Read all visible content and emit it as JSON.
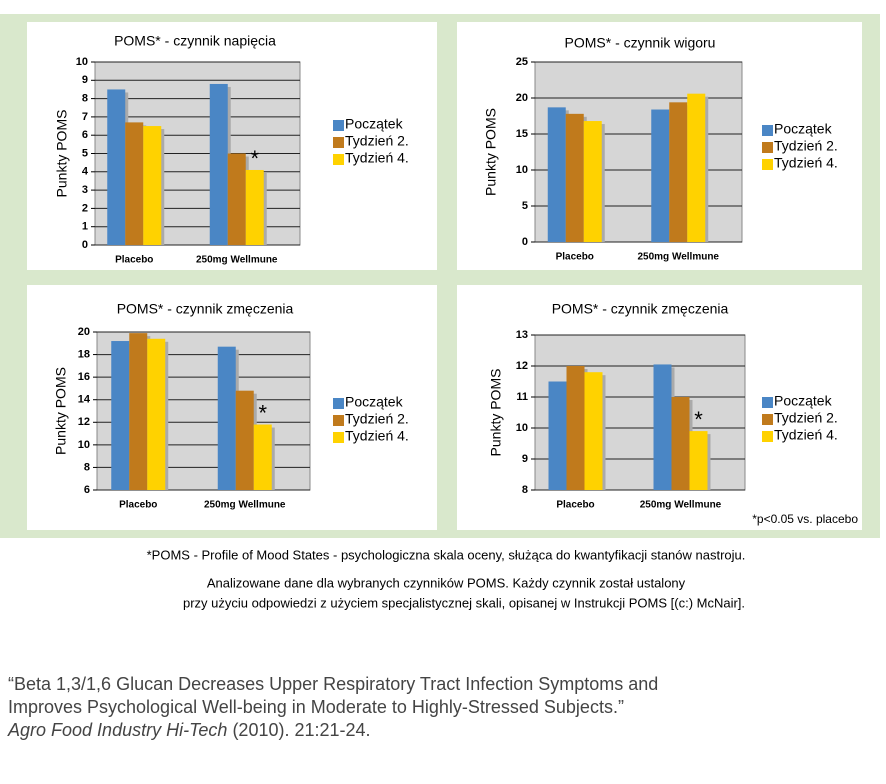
{
  "chart_data": [
    {
      "type": "bar",
      "title": "POMS* - czynnik napięcia",
      "y_label": "Punkty POMS",
      "categories": [
        "Placebo",
        "250mg Wellmune"
      ],
      "series": [
        {
          "name": "Początek",
          "color": "#4a86c5",
          "values": [
            8.5,
            8.8
          ]
        },
        {
          "name": "Tydzień 2.",
          "color": "#c07a1c",
          "values": [
            6.7,
            5.0
          ]
        },
        {
          "name": "Tydzień 4.",
          "color": "#ffd200",
          "values": [
            6.5,
            4.1
          ]
        }
      ],
      "ylim": [
        0,
        10
      ],
      "yticks": [
        0,
        1,
        2,
        3,
        4,
        5,
        6,
        7,
        8,
        9,
        10
      ],
      "grid": true,
      "legend": "right",
      "significance_marker": "*"
    },
    {
      "type": "bar",
      "title": "POMS* - czynnik wigoru",
      "y_label": "Punkty POMS",
      "categories": [
        "Placebo",
        "250mg Wellmune"
      ],
      "series": [
        {
          "name": "Początek",
          "color": "#4a86c5",
          "values": [
            18.7,
            18.4
          ]
        },
        {
          "name": "Tydzień 2.",
          "color": "#c07a1c",
          "values": [
            17.8,
            19.4
          ]
        },
        {
          "name": "Tydzień 4.",
          "color": "#ffd200",
          "values": [
            16.8,
            20.6
          ]
        }
      ],
      "ylim": [
        0,
        25
      ],
      "yticks": [
        0,
        5,
        10,
        15,
        20,
        25
      ],
      "grid": true,
      "legend": "right"
    },
    {
      "type": "bar",
      "title": "POMS* - czynnik zmęczenia",
      "y_label": "Punkty POMS",
      "categories": [
        "Placebo",
        "250mg Wellmune"
      ],
      "series": [
        {
          "name": "Początek",
          "color": "#4a86c5",
          "values": [
            19.2,
            18.7
          ]
        },
        {
          "name": "Tydzień 2.",
          "color": "#c07a1c",
          "values": [
            19.9,
            14.8
          ]
        },
        {
          "name": "Tydzień 4.",
          "color": "#ffd200",
          "values": [
            19.4,
            11.8
          ]
        }
      ],
      "ylim": [
        6,
        20
      ],
      "yticks": [
        6,
        8,
        10,
        12,
        14,
        16,
        18,
        20
      ],
      "grid": true,
      "legend": "right",
      "significance_marker": "*"
    },
    {
      "type": "bar",
      "title": "POMS* - czynnik zmęczenia",
      "y_label": "Punkty POMS",
      "categories": [
        "Placebo",
        "250mg Wellmune"
      ],
      "series": [
        {
          "name": "Początek",
          "color": "#4a86c5",
          "values": [
            11.5,
            12.05
          ]
        },
        {
          "name": "Tydzień 2.",
          "color": "#c07a1c",
          "values": [
            12.0,
            11.0
          ]
        },
        {
          "name": "Tydzień 4.",
          "color": "#ffd200",
          "values": [
            11.8,
            9.9
          ]
        }
      ],
      "ylim": [
        8,
        13
      ],
      "yticks": [
        8,
        9,
        10,
        11,
        12,
        13
      ],
      "grid": true,
      "legend": "right",
      "significance_marker": "*"
    }
  ],
  "notes": {
    "significance": "*p<0.05 vs. placebo",
    "definition": "*POMS - Profile of Mood States - psychologiczna skala oceny, służąca do kwantyfikacji stanów nastroju.",
    "description": [
      "Analizowane dane dla wybranych czynników POMS. Każdy czynnik został ustalony",
      "przy użyciu odpowiedzi z użyciem specjalistycznej skali, opisanej w Instrukcji POMS [(c:) McNair]."
    ],
    "citation": {
      "lines": [
        "“Beta 1,3/1,6 Glucan Decreases Upper Respiratory Tract Infection Symptoms and",
        "Improves Psychological Well-being in Moderate to Highly-Stressed Subjects.”"
      ],
      "journal": "Agro Food Industry Hi-Tech",
      "details": "(2010). 21:21-24."
    }
  }
}
